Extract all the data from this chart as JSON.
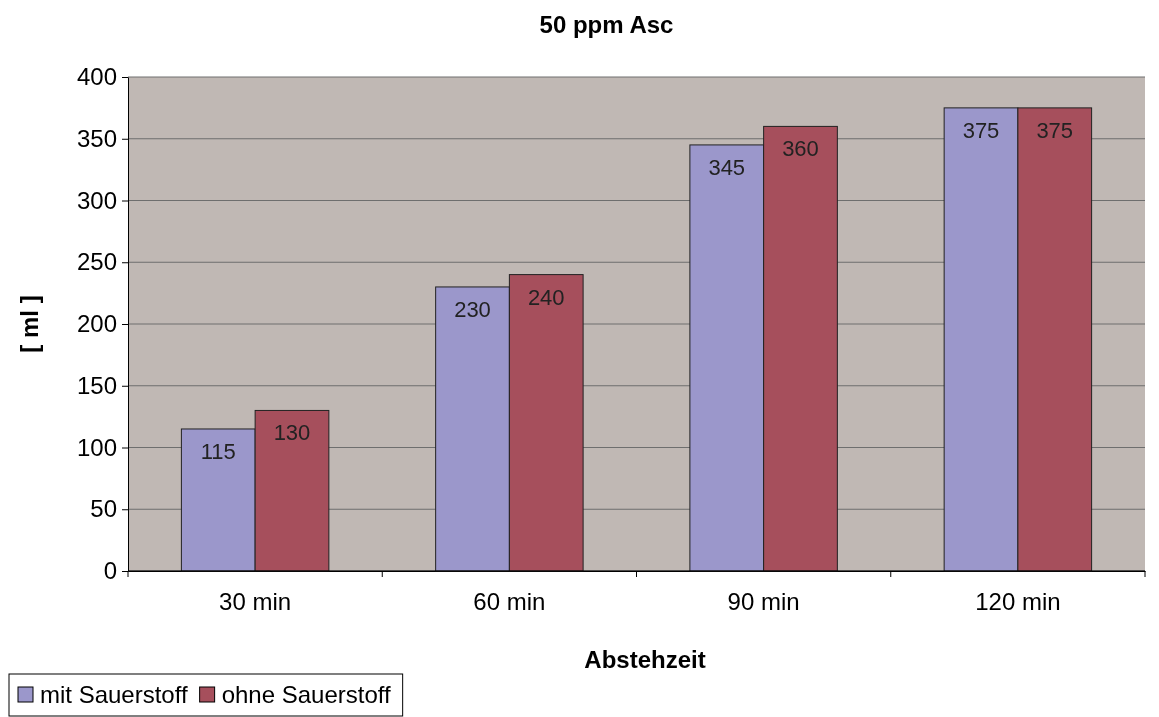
{
  "chart_data": {
    "type": "bar",
    "title": "50 ppm Asc",
    "xlabel": "Abstehzeit",
    "ylabel": "[ ml ]",
    "categories": [
      "30 min",
      "60 min",
      "90 min",
      "120 min"
    ],
    "series": [
      {
        "name": "mit Sauerstoff",
        "color": "#9b97cb",
        "values": [
          115,
          230,
          345,
          375
        ]
      },
      {
        "name": "ohne Sauerstoff",
        "color": "#a64f5c",
        "values": [
          130,
          240,
          360,
          375
        ]
      }
    ],
    "ylim": [
      0,
      400
    ],
    "yticks": [
      0,
      50,
      100,
      150,
      200,
      250,
      300,
      350,
      400
    ],
    "grid": "y",
    "legend": "bottom left",
    "data_labels": true
  }
}
